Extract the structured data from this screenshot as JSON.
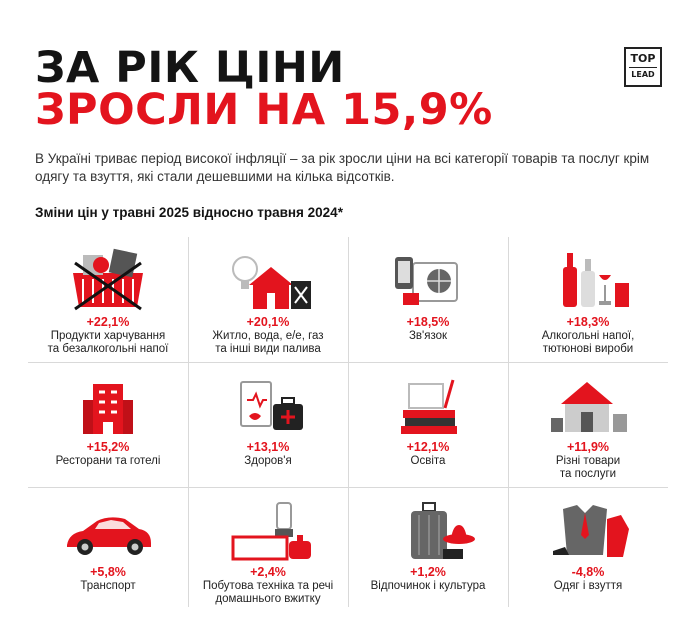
{
  "header": {
    "title_line1": "ЗА РІК ЦІНИ",
    "title_line2": "ЗРОСЛИ НА 15,9%",
    "logo_top": "TOP",
    "logo_bottom": "LEAD",
    "subtitle": "В Україні триває період високої інфляції – за рік зросли ціни на всі категорії товарів та послуг крім одягу та взуття, які стали дешевшими на кілька відсотків.",
    "section_title": "Зміни цін у травні 2025 відносно травня 2024*"
  },
  "colors": {
    "accent": "#e3141e",
    "text": "#141414",
    "grid": "#d9d9d9"
  },
  "categories": [
    {
      "value": "+22,1%",
      "label": "Продукти харчування\nта безалкогольні напої",
      "icon": "shopping-basket-icon"
    },
    {
      "value": "+20,1%",
      "label": "Житло, вода, е/е, газ\nта інші види палива",
      "icon": "house-utilities-icon"
    },
    {
      "value": "+18,5%",
      "label": "Зв'язок",
      "icon": "communication-devices-icon"
    },
    {
      "value": "+18,3%",
      "label": "Алкогольні напої,\nтютюнові вироби",
      "icon": "alcohol-tobacco-icon"
    },
    {
      "value": "+15,2%",
      "label": "Ресторани та готелі",
      "icon": "hotel-building-icon"
    },
    {
      "value": "+13,1%",
      "label": "Здоров'я",
      "icon": "medical-kit-icon"
    },
    {
      "value": "+12,1%",
      "label": "Освіта",
      "icon": "books-icon"
    },
    {
      "value": "+11,9%",
      "label": "Різні товари\nта послуги",
      "icon": "house-goods-icon"
    },
    {
      "value": "+5,8%",
      "label": "Транспорт",
      "icon": "car-icon"
    },
    {
      "value": "+2,4%",
      "label": "Побутова техніка та речі\nдомашнього вжитку",
      "icon": "home-appliances-icon"
    },
    {
      "value": "+1,2%",
      "label": "Відпочинок і культура",
      "icon": "luggage-hat-icon"
    },
    {
      "value": "-4,8%",
      "label": "Одяг і взуття",
      "icon": "clothing-icon"
    }
  ]
}
